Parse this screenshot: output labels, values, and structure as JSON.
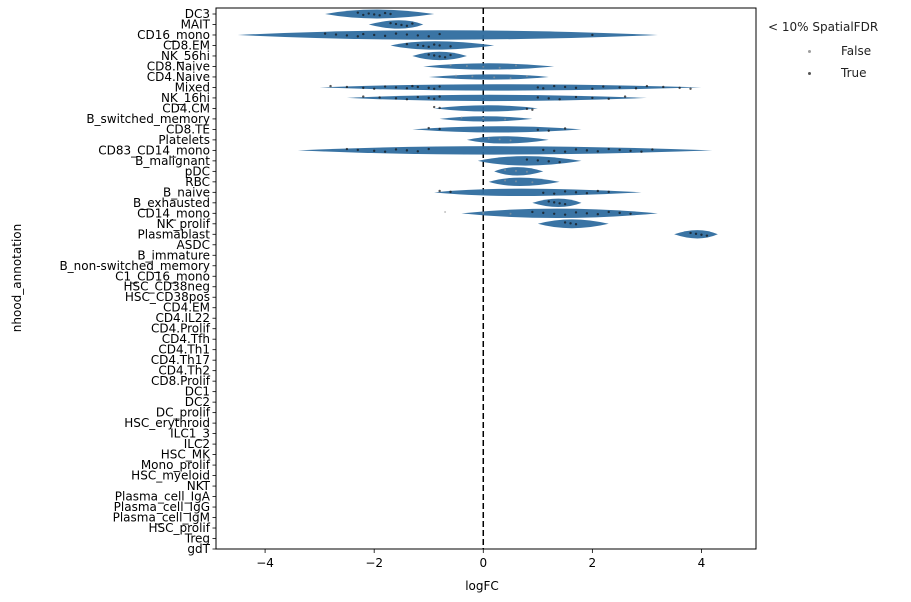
{
  "chart_data": {
    "type": "violin",
    "xlabel": "logFC",
    "ylabel": "nhood_annotation",
    "xlim": [
      -4.9,
      5.0
    ],
    "xticks": [
      -4,
      -2,
      0,
      2,
      4
    ],
    "xtick_labels": [
      "−4",
      "−2",
      "0",
      "2",
      "4"
    ],
    "reference_line": 0,
    "categories": [
      "DC3",
      "MAIT",
      "CD16_mono",
      "CD8.EM",
      "NK_56hi",
      "CD8.Naive",
      "CD4.Naive",
      "Mixed",
      "NK_16hi",
      "CD4.CM",
      "B_switched_memory",
      "CD8.TE",
      "Platelets",
      "CD83_CD14_mono",
      "B_malignant",
      "pDC",
      "RBC",
      "B_naive",
      "B_exhausted",
      "CD14_mono",
      "NK_prolif",
      "Plasmablast",
      "ASDC",
      "B_immature",
      "B_non-switched_memory",
      "C1_CD16_mono",
      "HSC_CD38neg",
      "HSC_CD38pos",
      "CD4.EM",
      "CD4.IL22",
      "CD4.Prolif",
      "CD4.Tfh",
      "CD4.Th1",
      "CD4.Th17",
      "CD4.Th2",
      "CD8.Prolif",
      "DC1",
      "DC2",
      "DC_prolif",
      "HSC_erythroid",
      "ILC1_3",
      "ILC2",
      "HSC_MK",
      "Mono_prolif",
      "HSC_myeloid",
      "NKT",
      "Plasma_cell_IgA",
      "Plasma_cell_IgG",
      "Plasma_cell_IgM",
      "HSC_prolif",
      "Treg",
      "gdT"
    ],
    "violins": [
      {
        "category": "DC3",
        "min": -2.9,
        "max": -0.9,
        "center": -2.0,
        "width": 0.85
      },
      {
        "category": "MAIT",
        "min": -2.1,
        "max": -1.1,
        "center": -1.5,
        "width": 0.8
      },
      {
        "category": "CD16_mono",
        "min": -4.5,
        "max": 3.2,
        "center": -1.0,
        "width": 0.9
      },
      {
        "category": "CD8.EM",
        "min": -1.7,
        "max": 0.2,
        "center": -1.0,
        "width": 0.8
      },
      {
        "category": "NK_56hi",
        "min": -1.3,
        "max": -0.3,
        "center": -0.8,
        "width": 0.8
      },
      {
        "category": "CD8.Naive",
        "min": -1.1,
        "max": 1.3,
        "center": 0.1,
        "width": 0.6
      },
      {
        "category": "CD4.Naive",
        "min": -1.0,
        "max": 1.2,
        "center": 0.2,
        "width": 0.5
      },
      {
        "category": "Mixed",
        "min": -3.0,
        "max": 4.0,
        "center": 0.0,
        "width": 0.6
      },
      {
        "category": "NK_16hi",
        "min": -2.5,
        "max": 3.0,
        "center": 0.0,
        "width": 0.6
      },
      {
        "category": "CD4.CM",
        "min": -0.9,
        "max": 1.0,
        "center": 0.1,
        "width": 0.6
      },
      {
        "category": "B_switched_memory",
        "min": -0.8,
        "max": 0.9,
        "center": 0.0,
        "width": 0.5
      },
      {
        "category": "CD8.TE",
        "min": -1.3,
        "max": 1.8,
        "center": 0.3,
        "width": 0.6
      },
      {
        "category": "Platelets",
        "min": -0.3,
        "max": 1.2,
        "center": 0.3,
        "width": 0.7
      },
      {
        "category": "CD83_CD14_mono",
        "min": -3.4,
        "max": 4.2,
        "center": 0.0,
        "width": 0.8
      },
      {
        "category": "B_malignant",
        "min": -0.1,
        "max": 1.8,
        "center": 0.7,
        "width": 0.9
      },
      {
        "category": "pDC",
        "min": 0.2,
        "max": 1.1,
        "center": 0.6,
        "width": 0.8
      },
      {
        "category": "RBC",
        "min": 0.1,
        "max": 1.4,
        "center": 0.6,
        "width": 0.8
      },
      {
        "category": "B_naive",
        "min": -0.9,
        "max": 2.9,
        "center": 0.4,
        "width": 0.7
      },
      {
        "category": "B_exhausted",
        "min": 0.9,
        "max": 1.8,
        "center": 1.4,
        "width": 0.8
      },
      {
        "category": "CD14_mono",
        "min": -0.4,
        "max": 3.2,
        "center": 1.3,
        "width": 0.9
      },
      {
        "category": "NK_prolif",
        "min": 1.0,
        "max": 2.3,
        "center": 1.6,
        "width": 0.85
      },
      {
        "category": "Plasmablast",
        "min": 3.5,
        "max": 4.3,
        "center": 3.95,
        "width": 0.8
      }
    ],
    "points": [
      {
        "category": "DC3",
        "spatial_fdr_lt_10": true,
        "x": [
          -2.3,
          -2.1,
          -2.0,
          -1.9,
          -1.8,
          -1.7,
          -2.2
        ]
      },
      {
        "category": "MAIT",
        "spatial_fdr_lt_10": true,
        "x": [
          -1.7,
          -1.6,
          -1.5,
          -1.4,
          -1.3
        ]
      },
      {
        "category": "CD16_mono",
        "spatial_fdr_lt_10": true,
        "x": [
          -2.9,
          -2.7,
          -2.5,
          -2.3,
          -2.2,
          -2.0,
          -1.8,
          -1.6,
          -1.4,
          -1.2,
          -1.0,
          -0.8,
          2.0
        ]
      },
      {
        "category": "CD8.EM",
        "spatial_fdr_lt_10": true,
        "x": [
          -1.4,
          -1.2,
          -1.1,
          -1.0,
          -0.9,
          -0.8,
          -0.6
        ]
      },
      {
        "category": "NK_56hi",
        "spatial_fdr_lt_10": true,
        "x": [
          -1.0,
          -0.9,
          -0.8,
          -0.7,
          -0.6
        ]
      },
      {
        "category": "Mixed",
        "spatial_fdr_lt_10": true,
        "x": [
          -2.8,
          -2.5,
          -2.2,
          -2.0,
          -1.8,
          -1.6,
          -1.4,
          -1.3,
          -1.2,
          -1.0,
          -0.9,
          -0.8,
          1.0,
          1.1,
          1.3,
          1.5,
          1.7,
          2.0,
          2.2,
          2.5,
          2.8,
          3.0,
          3.3,
          3.6,
          3.8
        ]
      },
      {
        "category": "NK_16hi",
        "spatial_fdr_lt_10": true,
        "x": [
          -2.2,
          -1.9,
          -1.6,
          -1.4,
          -1.2,
          -1.0,
          -0.9,
          -0.8,
          1.0,
          1.2,
          1.4,
          1.7,
          2.0,
          2.3,
          2.6
        ]
      },
      {
        "category": "CD4.CM",
        "spatial_fdr_lt_10": true,
        "x": [
          -0.9,
          -0.8,
          0.8,
          0.9
        ]
      },
      {
        "category": "CD8.TE",
        "spatial_fdr_lt_10": true,
        "x": [
          -1.0,
          -0.8,
          1.0,
          1.2,
          1.5
        ]
      },
      {
        "category": "CD83_CD14_mono",
        "spatial_fdr_lt_10": true,
        "x": [
          -2.5,
          -2.3,
          -2.0,
          -1.8,
          -1.6,
          -1.4,
          -1.2,
          -1.0,
          1.1,
          1.3,
          1.5,
          1.7,
          1.9,
          2.1,
          2.3,
          2.5,
          2.7,
          2.9,
          3.1
        ]
      },
      {
        "category": "B_malignant",
        "spatial_fdr_lt_10": true,
        "x": [
          0.8,
          1.0,
          1.2,
          1.4
        ]
      },
      {
        "category": "B_naive",
        "spatial_fdr_lt_10": true,
        "x": [
          -0.8,
          -0.6,
          1.1,
          1.3,
          1.5,
          1.7,
          1.9,
          2.1,
          2.3
        ]
      },
      {
        "category": "B_exhausted",
        "spatial_fdr_lt_10": true,
        "x": [
          1.2,
          1.3,
          1.4,
          1.5
        ]
      },
      {
        "category": "CD14_mono",
        "spatial_fdr_lt_10": true,
        "x": [
          0.9,
          1.1,
          1.3,
          1.5,
          1.7,
          1.9,
          2.1,
          2.3,
          2.5,
          2.7
        ]
      },
      {
        "category": "NK_prolif",
        "spatial_fdr_lt_10": true,
        "x": [
          1.5,
          1.6,
          1.7
        ]
      },
      {
        "category": "Plasmablast",
        "spatial_fdr_lt_10": true,
        "x": [
          3.8,
          3.9,
          4.0,
          4.1
        ]
      },
      {
        "category": "CD8.Naive",
        "spatial_fdr_lt_10": false,
        "x": [
          -0.6,
          -0.3,
          0.0,
          0.3,
          0.6
        ]
      },
      {
        "category": "CD4.Naive",
        "spatial_fdr_lt_10": false,
        "x": [
          -0.5,
          -0.2,
          0.2,
          0.5,
          0.8
        ]
      },
      {
        "category": "B_switched_memory",
        "spatial_fdr_lt_10": false,
        "x": [
          -0.4,
          0.0,
          0.4
        ]
      },
      {
        "category": "Platelets",
        "spatial_fdr_lt_10": false,
        "x": [
          0.1,
          0.3,
          0.5
        ]
      },
      {
        "category": "pDC",
        "spatial_fdr_lt_10": false,
        "x": [
          0.4,
          0.6,
          0.8
        ]
      },
      {
        "category": "RBC",
        "spatial_fdr_lt_10": false,
        "x": [
          0.4,
          0.6,
          0.9
        ]
      },
      {
        "category": "CD14_mono",
        "spatial_fdr_lt_10": false,
        "x": [
          -0.7,
          0.0,
          0.5
        ]
      }
    ],
    "legend": {
      "title": "< 10% SpatialFDR",
      "placement": "outside-right",
      "entries": [
        {
          "label": "False",
          "color": "#9e9e9e"
        },
        {
          "label": "True",
          "color": "#555555"
        }
      ]
    },
    "colors": {
      "violin": "#2f6d9f",
      "point_true": "#111111",
      "point_false": "#9e9e9e",
      "zero_line": "#000000"
    }
  }
}
